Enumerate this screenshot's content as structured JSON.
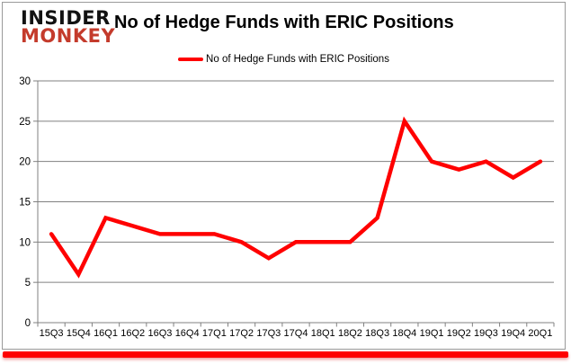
{
  "logo": {
    "line1": "INSIDER",
    "line2": "MONKEY"
  },
  "header": {
    "title": "No of Hedge Funds with ERIC Positions"
  },
  "legend": {
    "label": "No of Hedge Funds with ERIC Positions"
  },
  "colors": {
    "line": "#ff0000",
    "grid": "#808080",
    "axis_text": "#000000",
    "logo_accent": "#c43b2c",
    "underline": "#fe0000"
  },
  "chart_data": {
    "type": "line",
    "title": "No of Hedge Funds with ERIC Positions",
    "categories": [
      "15Q3",
      "15Q4",
      "16Q1",
      "16Q2",
      "16Q3",
      "16Q4",
      "17Q1",
      "17Q2",
      "17Q3",
      "17Q4",
      "18Q1",
      "18Q2",
      "18Q3",
      "18Q4",
      "19Q1",
      "19Q2",
      "19Q3",
      "19Q4",
      "20Q1"
    ],
    "series": [
      {
        "name": "No of Hedge Funds with ERIC Positions",
        "color": "#ff0000",
        "values": [
          11,
          6,
          13,
          12,
          11,
          11,
          11,
          10,
          8,
          10,
          10,
          10,
          13,
          25,
          20,
          19,
          20,
          18,
          20
        ]
      }
    ],
    "xlabel": "",
    "ylabel": "",
    "ylim": [
      0,
      30
    ],
    "yticks": [
      0,
      5,
      10,
      15,
      20,
      25,
      30
    ],
    "grid": true,
    "legend_position": "top"
  }
}
